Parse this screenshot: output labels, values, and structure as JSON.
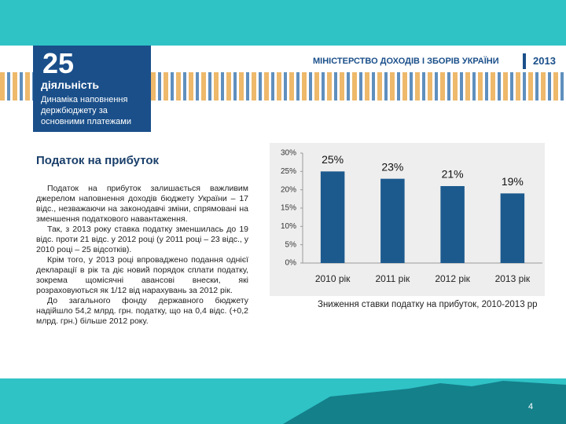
{
  "header": {
    "number": "25",
    "section": "діяльність",
    "subtitle": "Динаміка наповнення держбюджету за основними платежами",
    "ministry": "МІНІСТЕРСТВО ДОХОДІВ І ЗБОРІВ УКРАЇНИ",
    "year": "2013"
  },
  "title": "Податок на прибуток",
  "body": [
    "Податок на прибуток залишається важливим джерелом наповнення доходів бюджету України – 17 відс., незважаючи на законодавчі зміни, спрямовані на зменшення податкового навантаження.",
    "Так, з 2013 року ставка податку зменшилась до 19 відс. проти 21 відс. у 2012 році (у 2011 році – 23 відс., у 2010 році – 25 відсотків).",
    "Крім того, у 2013 році впроваджено подання однієї декларації в рік та діє новий порядок сплати податку, зокрема щомісячні авансові внески, які розраховуються як 1/12 від нарахувань за 2012 рік.",
    "До загального фонду державного бюджету надійшло 54,2 млрд. грн. податку, що на 0,4 відс. (+0,2 млрд. грн.) більше 2012 року."
  ],
  "chart_data": {
    "type": "bar",
    "caption": "Зниження ставки податку на прибуток, 2010-2013 рр",
    "categories": [
      "2010 рік",
      "2011 рік",
      "2012  рік",
      "2013 рік"
    ],
    "values": [
      25,
      23,
      21,
      19
    ],
    "value_labels": [
      "25%",
      "23%",
      "21%",
      "19%"
    ],
    "color": "#1c5a8e",
    "ylim": [
      0,
      30
    ],
    "yticks": [
      {
        "value": 0,
        "label": "0%"
      },
      {
        "value": 5,
        "label": "5%"
      },
      {
        "value": 10,
        "label": "10%"
      },
      {
        "value": 15,
        "label": "15%"
      },
      {
        "value": 20,
        "label": "20%"
      },
      {
        "value": 25,
        "label": "25%"
      },
      {
        "value": 30,
        "label": "30%"
      }
    ]
  },
  "page_number": "4"
}
